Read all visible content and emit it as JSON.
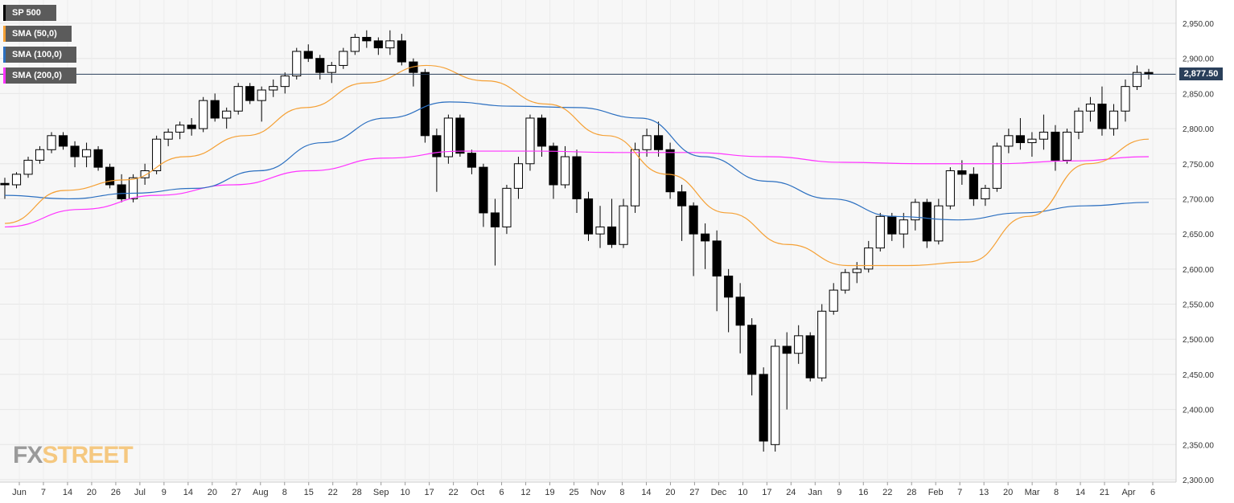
{
  "chart_data": {
    "type": "candlestick",
    "title": "",
    "instrument": "SP 500",
    "legend": [
      {
        "label": "SP 500",
        "color": "#000000"
      },
      {
        "label": "SMA (50,0)",
        "color": "#f5a034"
      },
      {
        "label": "SMA (100,0)",
        "color": "#2b6fc0"
      },
      {
        "label": "SMA (200,0)",
        "color": "#ff33ff"
      }
    ],
    "last_price_label": "2,877.50",
    "last_price": 2877.5,
    "ylim": [
      2300,
      2950
    ],
    "y_ticks": [
      "2,300.00",
      "2,350.00",
      "2,400.00",
      "2,450.00",
      "2,500.00",
      "2,550.00",
      "2,600.00",
      "2,650.00",
      "2,700.00",
      "2,750.00",
      "2,800.00",
      "2,850.00",
      "2,900.00",
      "2,950.00"
    ],
    "x_ticks": [
      "Jun",
      "7",
      "14",
      "20",
      "26",
      "Jul",
      "9",
      "14",
      "20",
      "27",
      "Aug",
      "8",
      "15",
      "22",
      "28",
      "Sep",
      "10",
      "17",
      "22",
      "Oct",
      "6",
      "12",
      "19",
      "25",
      "Nov",
      "8",
      "14",
      "20",
      "27",
      "Dec",
      "10",
      "17",
      "24",
      "Jan",
      "9",
      "16",
      "22",
      "28",
      "Feb",
      "7",
      "13",
      "20",
      "Mar",
      "8",
      "14",
      "21",
      "Apr",
      "6"
    ],
    "grid": true,
    "sma50": [
      2665,
      2712,
      2727,
      2760,
      2790,
      2830,
      2865,
      2890,
      2868,
      2835,
      2790,
      2735,
      2680,
      2635,
      2605,
      2605,
      2610,
      2675,
      2750,
      2785
    ],
    "sma100": [
      2705,
      2700,
      2708,
      2715,
      2740,
      2780,
      2815,
      2838,
      2832,
      2830,
      2815,
      2760,
      2725,
      2700,
      2675,
      2670,
      2680,
      2690,
      2695
    ],
    "sma200": [
      2660,
      2685,
      2705,
      2720,
      2740,
      2758,
      2768,
      2768,
      2766,
      2766,
      2760,
      2752,
      2750,
      2750,
      2754,
      2760
    ],
    "candles": [
      [
        2722,
        2730,
        2700,
        2720
      ],
      [
        2720,
        2738,
        2715,
        2735
      ],
      [
        2735,
        2760,
        2730,
        2755
      ],
      [
        2755,
        2775,
        2750,
        2770
      ],
      [
        2770,
        2795,
        2765,
        2790
      ],
      [
        2790,
        2795,
        2770,
        2775
      ],
      [
        2775,
        2782,
        2745,
        2760
      ],
      [
        2760,
        2780,
        2745,
        2770
      ],
      [
        2770,
        2775,
        2740,
        2745
      ],
      [
        2745,
        2750,
        2715,
        2720
      ],
      [
        2720,
        2735,
        2695,
        2700
      ],
      [
        2700,
        2735,
        2695,
        2730
      ],
      [
        2730,
        2750,
        2720,
        2740
      ],
      [
        2740,
        2790,
        2735,
        2785
      ],
      [
        2785,
        2800,
        2775,
        2795
      ],
      [
        2795,
        2810,
        2785,
        2805
      ],
      [
        2805,
        2815,
        2790,
        2800
      ],
      [
        2800,
        2845,
        2795,
        2840
      ],
      [
        2840,
        2850,
        2810,
        2815
      ],
      [
        2815,
        2830,
        2800,
        2825
      ],
      [
        2825,
        2865,
        2820,
        2860
      ],
      [
        2860,
        2865,
        2835,
        2840
      ],
      [
        2840,
        2860,
        2810,
        2855
      ],
      [
        2855,
        2870,
        2845,
        2860
      ],
      [
        2860,
        2880,
        2850,
        2875
      ],
      [
        2875,
        2915,
        2870,
        2910
      ],
      [
        2910,
        2920,
        2895,
        2900
      ],
      [
        2900,
        2905,
        2870,
        2880
      ],
      [
        2880,
        2895,
        2865,
        2890
      ],
      [
        2890,
        2915,
        2885,
        2910
      ],
      [
        2910,
        2935,
        2905,
        2930
      ],
      [
        2930,
        2940,
        2915,
        2925
      ],
      [
        2925,
        2930,
        2905,
        2915
      ],
      [
        2915,
        2940,
        2905,
        2925
      ],
      [
        2925,
        2935,
        2890,
        2895
      ],
      [
        2895,
        2900,
        2860,
        2880
      ],
      [
        2880,
        2885,
        2780,
        2790
      ],
      [
        2790,
        2800,
        2710,
        2760
      ],
      [
        2760,
        2820,
        2750,
        2815
      ],
      [
        2815,
        2820,
        2760,
        2765
      ],
      [
        2765,
        2770,
        2735,
        2745
      ],
      [
        2745,
        2750,
        2660,
        2680
      ],
      [
        2680,
        2700,
        2605,
        2660
      ],
      [
        2660,
        2720,
        2650,
        2715
      ],
      [
        2715,
        2760,
        2700,
        2750
      ],
      [
        2750,
        2820,
        2740,
        2815
      ],
      [
        2815,
        2820,
        2760,
        2775
      ],
      [
        2775,
        2780,
        2700,
        2720
      ],
      [
        2720,
        2775,
        2715,
        2760
      ],
      [
        2760,
        2770,
        2680,
        2700
      ],
      [
        2700,
        2710,
        2640,
        2650
      ],
      [
        2650,
        2690,
        2630,
        2660
      ],
      [
        2660,
        2700,
        2630,
        2635
      ],
      [
        2635,
        2700,
        2630,
        2690
      ],
      [
        2690,
        2780,
        2680,
        2770
      ],
      [
        2770,
        2800,
        2760,
        2790
      ],
      [
        2790,
        2810,
        2760,
        2770
      ],
      [
        2770,
        2780,
        2700,
        2710
      ],
      [
        2710,
        2720,
        2640,
        2690
      ],
      [
        2690,
        2695,
        2590,
        2650
      ],
      [
        2650,
        2665,
        2600,
        2640
      ],
      [
        2640,
        2655,
        2540,
        2590
      ],
      [
        2590,
        2600,
        2510,
        2560
      ],
      [
        2560,
        2580,
        2480,
        2520
      ],
      [
        2520,
        2530,
        2420,
        2450
      ],
      [
        2450,
        2460,
        2340,
        2355
      ],
      [
        2350,
        2500,
        2340,
        2490
      ],
      [
        2490,
        2510,
        2400,
        2480
      ],
      [
        2480,
        2520,
        2465,
        2505
      ],
      [
        2505,
        2510,
        2440,
        2445
      ],
      [
        2445,
        2550,
        2440,
        2540
      ],
      [
        2540,
        2580,
        2535,
        2570
      ],
      [
        2570,
        2600,
        2565,
        2595
      ],
      [
        2595,
        2610,
        2580,
        2600
      ],
      [
        2600,
        2640,
        2595,
        2630
      ],
      [
        2630,
        2680,
        2625,
        2675
      ],
      [
        2675,
        2680,
        2640,
        2650
      ],
      [
        2650,
        2680,
        2630,
        2670
      ],
      [
        2670,
        2700,
        2655,
        2695
      ],
      [
        2695,
        2700,
        2630,
        2640
      ],
      [
        2640,
        2700,
        2635,
        2690
      ],
      [
        2690,
        2745,
        2685,
        2740
      ],
      [
        2740,
        2755,
        2720,
        2735
      ],
      [
        2735,
        2745,
        2690,
        2700
      ],
      [
        2700,
        2720,
        2690,
        2715
      ],
      [
        2715,
        2780,
        2710,
        2775
      ],
      [
        2775,
        2800,
        2765,
        2790
      ],
      [
        2790,
        2815,
        2770,
        2780
      ],
      [
        2780,
        2795,
        2760,
        2785
      ],
      [
        2785,
        2820,
        2770,
        2795
      ],
      [
        2795,
        2805,
        2740,
        2755
      ],
      [
        2755,
        2800,
        2750,
        2795
      ],
      [
        2795,
        2830,
        2785,
        2825
      ],
      [
        2825,
        2845,
        2810,
        2835
      ],
      [
        2835,
        2860,
        2790,
        2800
      ],
      [
        2800,
        2835,
        2790,
        2825
      ],
      [
        2825,
        2870,
        2810,
        2860
      ],
      [
        2860,
        2890,
        2855,
        2880
      ],
      [
        2880,
        2885,
        2870,
        2877.5
      ]
    ]
  }
}
